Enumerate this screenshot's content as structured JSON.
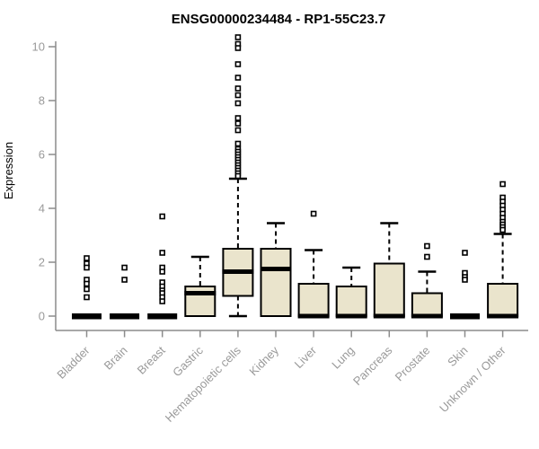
{
  "colors": {
    "background": "#ffffff",
    "box_fill": "#eae4cc",
    "box_stroke": "#000000",
    "median": "#000000",
    "whisker": "#000000",
    "outlier_stroke": "#000000",
    "outlier_fill": "#ffffff",
    "axis_line": "#8c8c8c",
    "tick_text": "#9a9a9a",
    "title_text": "#000000"
  },
  "chart_data": {
    "type": "boxplot",
    "title": "ENSG00000234484 - RP1-55C23.7",
    "xlabel": "",
    "ylabel": "Expression",
    "ylim": [
      0,
      10
    ],
    "yticks": [
      0,
      2,
      4,
      6,
      8,
      10
    ],
    "grid": false,
    "legend": false,
    "categories": [
      "Bladder",
      "Brain",
      "Breast",
      "Gastric",
      "Hematopoietic cells",
      "Kidney",
      "Liver",
      "Lung",
      "Pancreas",
      "Prostate",
      "Skin",
      "Unknown / Other"
    ],
    "series": [
      {
        "category": "Bladder",
        "q1": 0,
        "median": 0,
        "q3": 0,
        "whisker_low": 0,
        "whisker_high": 0,
        "outliers": [
          2.15,
          1.95,
          1.8,
          1.35,
          1.2,
          1.0,
          0.7
        ]
      },
      {
        "category": "Brain",
        "q1": 0,
        "median": 0,
        "q3": 0,
        "whisker_low": 0,
        "whisker_high": 0,
        "outliers": [
          1.8,
          1.35
        ]
      },
      {
        "category": "Breast",
        "q1": 0,
        "median": 0,
        "q3": 0,
        "whisker_low": 0,
        "whisker_high": 0,
        "outliers": [
          3.7,
          2.35,
          1.8,
          1.65,
          1.25,
          1.1,
          0.95,
          0.85,
          0.7,
          0.55
        ]
      },
      {
        "category": "Gastric",
        "q1": 0,
        "median": 0.85,
        "q3": 1.1,
        "whisker_low": 0,
        "whisker_high": 2.2,
        "outliers": []
      },
      {
        "category": "Hematopoietic cells",
        "q1": 0.75,
        "median": 1.65,
        "q3": 2.5,
        "whisker_low": 0,
        "whisker_high": 5.1,
        "outliers": [
          10.35,
          10.1,
          9.95,
          9.35,
          8.85,
          8.45,
          8.2,
          7.9,
          7.35,
          7.15,
          6.9,
          6.4,
          6.2,
          6.1,
          6.0,
          5.9,
          5.8,
          5.7,
          5.6,
          5.5,
          5.4,
          5.3,
          5.2
        ]
      },
      {
        "category": "Kidney",
        "q1": 0,
        "median": 1.75,
        "q3": 2.5,
        "whisker_low": 0,
        "whisker_high": 3.45,
        "outliers": []
      },
      {
        "category": "Liver",
        "q1": 0,
        "median": 0,
        "q3": 1.2,
        "whisker_low": 0,
        "whisker_high": 2.45,
        "outliers": [
          3.8
        ]
      },
      {
        "category": "Lung",
        "q1": 0,
        "median": 0,
        "q3": 1.1,
        "whisker_low": 0,
        "whisker_high": 1.8,
        "outliers": []
      },
      {
        "category": "Pancreas",
        "q1": 0,
        "median": 0,
        "q3": 1.95,
        "whisker_low": 0,
        "whisker_high": 3.45,
        "outliers": []
      },
      {
        "category": "Prostate",
        "q1": 0,
        "median": 0,
        "q3": 0.85,
        "whisker_low": 0,
        "whisker_high": 1.65,
        "outliers": [
          2.6,
          2.2
        ]
      },
      {
        "category": "Skin",
        "q1": 0,
        "median": 0,
        "q3": 0,
        "whisker_low": 0,
        "whisker_high": 0,
        "outliers": [
          2.35,
          1.6,
          1.45,
          1.35
        ]
      },
      {
        "category": "Unknown / Other",
        "q1": 0,
        "median": 0,
        "q3": 1.2,
        "whisker_low": 0,
        "whisker_high": 3.05,
        "outliers": [
          4.9,
          4.4,
          4.25,
          4.1,
          3.95,
          3.8,
          3.65,
          3.5,
          3.4,
          3.3,
          3.2
        ]
      }
    ]
  }
}
